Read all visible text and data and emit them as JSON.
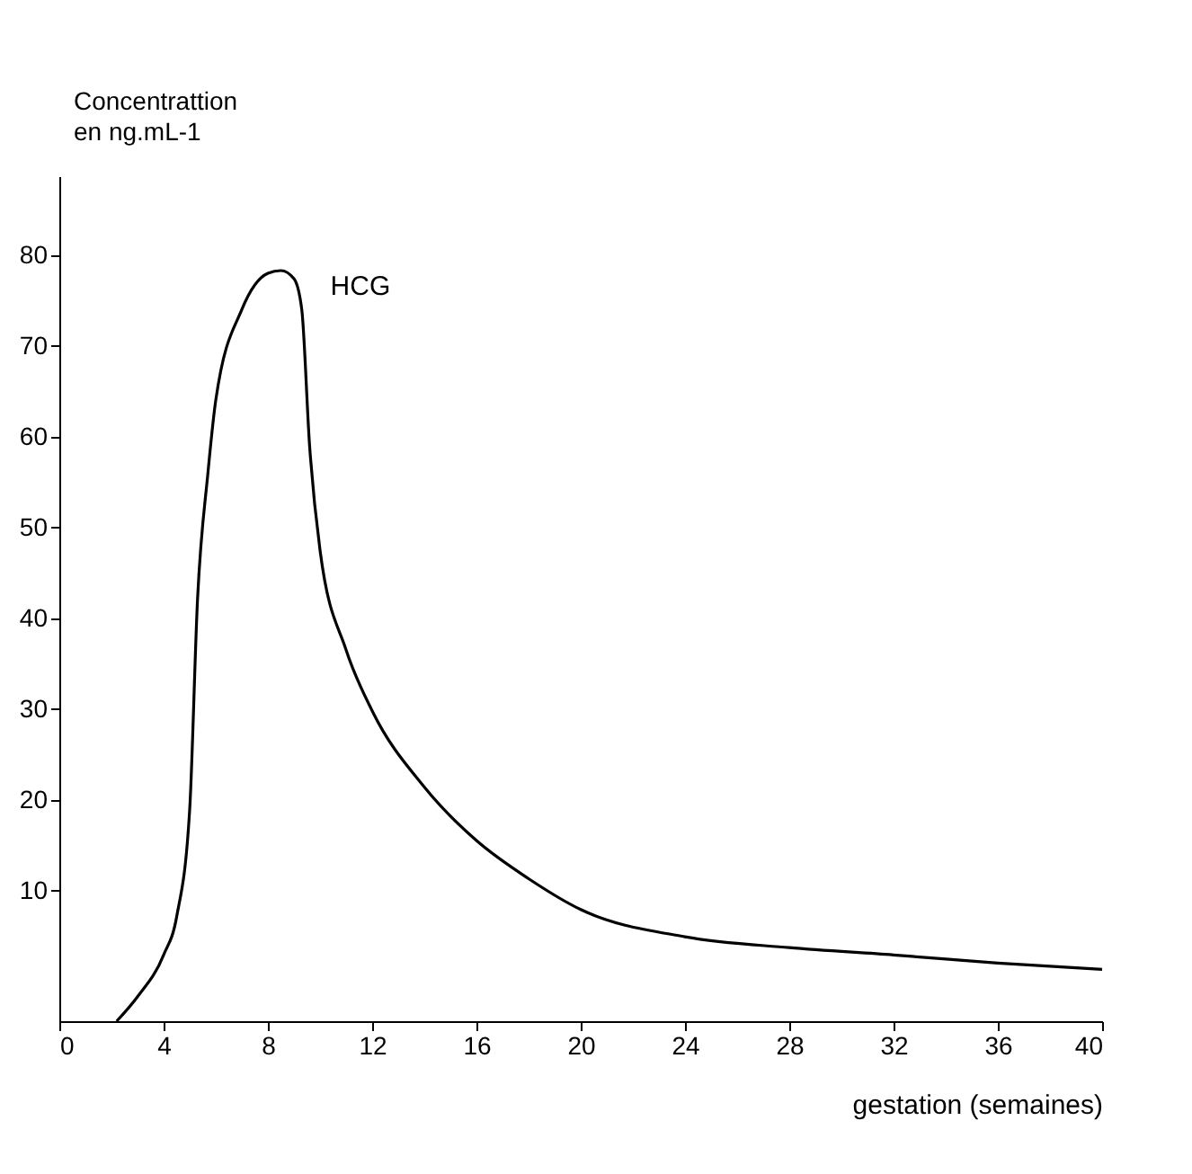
{
  "chart_data": {
    "type": "line",
    "xlabel": "gestation (semaines)",
    "ylabel": "Concentrattion en ng.mL-1",
    "x": [
      2.2,
      3,
      4,
      4.5,
      5,
      5.3,
      5.7,
      6,
      7,
      8,
      8.5,
      9,
      9.3,
      9.6,
      10,
      11,
      12,
      14,
      16,
      18,
      20,
      24,
      28,
      32,
      36,
      40
    ],
    "series": [
      {
        "color": "#000000",
        "values": [
          -4.4,
          -1.7,
          2.9,
          7.1,
          18.9,
          42,
          56,
          64,
          74,
          78,
          78.3,
          77.4,
          74,
          59,
          47.5,
          36.5,
          29.8,
          21.4,
          15.5,
          11.3,
          7.9,
          4.9,
          3.7,
          2.9,
          2.0,
          1.3
        ]
      }
    ],
    "annotations": [
      "HCG"
    ],
    "xlim": [
      0,
      40
    ],
    "xticks": [
      0,
      4,
      8,
      12,
      16,
      20,
      24,
      28,
      32,
      36,
      40
    ],
    "ylim": [
      -4.4,
      88.7
    ],
    "yticks": [
      10,
      20,
      30,
      40,
      50,
      60,
      70,
      80
    ],
    "grid": false,
    "marker": "none",
    "line_style": "solid"
  }
}
